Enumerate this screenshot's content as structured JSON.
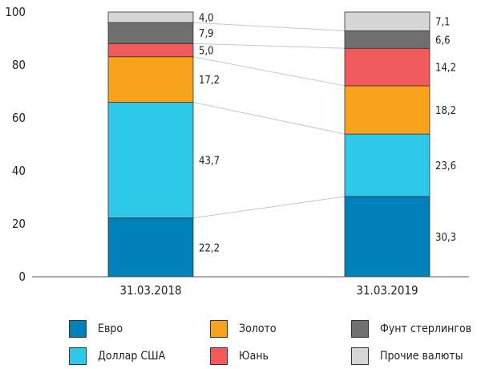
{
  "chart_data": {
    "type": "bar",
    "stacked": true,
    "categories": [
      "31.03.2018",
      "31.03.2019"
    ],
    "ylim": [
      0,
      100
    ],
    "yticks": [
      "0",
      "20",
      "40",
      "60",
      "80",
      "100"
    ],
    "series": [
      {
        "name": "Евро",
        "color": "#0080b8",
        "values": [
          22.2,
          30.3
        ],
        "labels": [
          "22,2",
          "30,3"
        ]
      },
      {
        "name": "Доллар США",
        "color": "#2ec8ea",
        "values": [
          43.7,
          23.6
        ],
        "labels": [
          "43,7",
          "23,6"
        ]
      },
      {
        "name": "Золото",
        "color": "#f7a41c",
        "values": [
          17.2,
          18.2
        ],
        "labels": [
          "17,2",
          "18,2"
        ]
      },
      {
        "name": "Юань",
        "color": "#f05a5a",
        "values": [
          5.0,
          14.2
        ],
        "labels": [
          "5,0",
          "14,2"
        ]
      },
      {
        "name": "Фунт стерлингов",
        "color": "#707070",
        "values": [
          7.9,
          6.6
        ],
        "labels": [
          "7,9",
          "6,6"
        ]
      },
      {
        "name": "Прочие валюты",
        "color": "#d6d6d6",
        "values": [
          4.0,
          7.1
        ],
        "labels": [
          "4,0",
          "7,1"
        ]
      }
    ],
    "legend_position": "bottom",
    "grid": false
  }
}
